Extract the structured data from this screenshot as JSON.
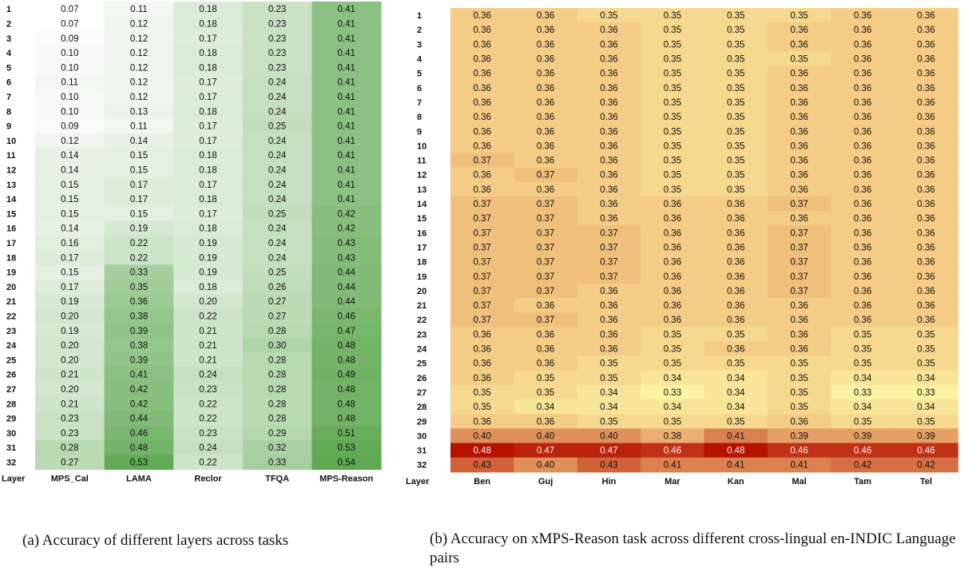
{
  "captions": {
    "a": "(a) Accuracy of different layers across tasks",
    "b": "(b) Accuracy on xMPS-Reason task across different cross-lingual en-INDIC Language pairs"
  },
  "chart_data": [
    {
      "type": "heatmap",
      "row_header": "Layer",
      "rows": [
        "1",
        "2",
        "3",
        "4",
        "5",
        "6",
        "7",
        "8",
        "9",
        "10",
        "11",
        "12",
        "13",
        "14",
        "15",
        "16",
        "17",
        "18",
        "19",
        "20",
        "21",
        "22",
        "23",
        "24",
        "25",
        "26",
        "27",
        "28",
        "29",
        "30",
        "31",
        "32"
      ],
      "columns": [
        "MPS_Cal",
        "LAMA",
        "Reclor",
        "TFQA",
        "MPS-Reason"
      ],
      "colormap": [
        "#ffffff",
        "#5fa952"
      ],
      "values": [
        [
          0.07,
          0.11,
          0.18,
          0.23,
          0.41
        ],
        [
          0.07,
          0.12,
          0.18,
          0.23,
          0.41
        ],
        [
          0.09,
          0.12,
          0.17,
          0.23,
          0.41
        ],
        [
          0.1,
          0.12,
          0.18,
          0.23,
          0.41
        ],
        [
          0.1,
          0.12,
          0.18,
          0.23,
          0.41
        ],
        [
          0.11,
          0.12,
          0.17,
          0.24,
          0.41
        ],
        [
          0.1,
          0.12,
          0.17,
          0.24,
          0.41
        ],
        [
          0.1,
          0.13,
          0.18,
          0.24,
          0.41
        ],
        [
          0.09,
          0.11,
          0.17,
          0.25,
          0.41
        ],
        [
          0.12,
          0.14,
          0.17,
          0.24,
          0.41
        ],
        [
          0.14,
          0.15,
          0.18,
          0.24,
          0.41
        ],
        [
          0.14,
          0.15,
          0.18,
          0.24,
          0.41
        ],
        [
          0.15,
          0.17,
          0.17,
          0.24,
          0.41
        ],
        [
          0.15,
          0.17,
          0.18,
          0.24,
          0.41
        ],
        [
          0.15,
          0.15,
          0.17,
          0.25,
          0.42
        ],
        [
          0.14,
          0.19,
          0.18,
          0.24,
          0.42
        ],
        [
          0.16,
          0.22,
          0.19,
          0.24,
          0.43
        ],
        [
          0.17,
          0.22,
          0.19,
          0.24,
          0.43
        ],
        [
          0.15,
          0.33,
          0.19,
          0.25,
          0.44
        ],
        [
          0.17,
          0.35,
          0.18,
          0.26,
          0.44
        ],
        [
          0.19,
          0.36,
          0.2,
          0.27,
          0.44
        ],
        [
          0.2,
          0.38,
          0.22,
          0.27,
          0.46
        ],
        [
          0.19,
          0.39,
          0.21,
          0.28,
          0.47
        ],
        [
          0.2,
          0.38,
          0.21,
          0.3,
          0.48
        ],
        [
          0.2,
          0.39,
          0.21,
          0.28,
          0.48
        ],
        [
          0.21,
          0.41,
          0.24,
          0.28,
          0.49
        ],
        [
          0.2,
          0.42,
          0.23,
          0.28,
          0.48
        ],
        [
          0.21,
          0.42,
          0.22,
          0.28,
          0.48
        ],
        [
          0.23,
          0.44,
          0.22,
          0.28,
          0.48
        ],
        [
          0.23,
          0.46,
          0.23,
          0.29,
          0.51
        ],
        [
          0.28,
          0.48,
          0.24,
          0.32,
          0.53
        ],
        [
          0.27,
          0.53,
          0.22,
          0.33,
          0.54
        ]
      ]
    },
    {
      "type": "heatmap",
      "row_header": "Layer",
      "rows": [
        "1",
        "2",
        "3",
        "4",
        "5",
        "6",
        "7",
        "8",
        "9",
        "10",
        "11",
        "12",
        "13",
        "14",
        "15",
        "16",
        "17",
        "18",
        "19",
        "20",
        "21",
        "22",
        "23",
        "24",
        "25",
        "26",
        "27",
        "28",
        "29",
        "30",
        "31",
        "32"
      ],
      "columns": [
        "Ben",
        "Guj",
        "Hin",
        "Mar",
        "Kan",
        "Mal",
        "Tam",
        "Tel"
      ],
      "colormap": [
        "#fbf2a2",
        "#f2c37f",
        "#b51200"
      ],
      "values": [
        [
          0.36,
          0.36,
          0.35,
          0.35,
          0.35,
          0.35,
          0.36,
          0.36
        ],
        [
          0.36,
          0.36,
          0.36,
          0.35,
          0.35,
          0.36,
          0.36,
          0.36
        ],
        [
          0.36,
          0.36,
          0.36,
          0.35,
          0.35,
          0.36,
          0.36,
          0.36
        ],
        [
          0.36,
          0.36,
          0.36,
          0.35,
          0.35,
          0.35,
          0.36,
          0.36
        ],
        [
          0.36,
          0.36,
          0.36,
          0.35,
          0.35,
          0.36,
          0.36,
          0.36
        ],
        [
          0.36,
          0.36,
          0.36,
          0.35,
          0.35,
          0.36,
          0.36,
          0.36
        ],
        [
          0.36,
          0.36,
          0.36,
          0.35,
          0.35,
          0.36,
          0.36,
          0.36
        ],
        [
          0.36,
          0.36,
          0.36,
          0.35,
          0.35,
          0.36,
          0.36,
          0.36
        ],
        [
          0.36,
          0.36,
          0.36,
          0.35,
          0.35,
          0.36,
          0.36,
          0.36
        ],
        [
          0.36,
          0.36,
          0.36,
          0.35,
          0.35,
          0.36,
          0.36,
          0.36
        ],
        [
          0.37,
          0.36,
          0.36,
          0.35,
          0.35,
          0.36,
          0.36,
          0.36
        ],
        [
          0.36,
          0.37,
          0.36,
          0.35,
          0.35,
          0.36,
          0.36,
          0.36
        ],
        [
          0.36,
          0.36,
          0.36,
          0.35,
          0.35,
          0.36,
          0.36,
          0.36
        ],
        [
          0.37,
          0.37,
          0.36,
          0.36,
          0.36,
          0.37,
          0.36,
          0.36
        ],
        [
          0.37,
          0.37,
          0.36,
          0.36,
          0.36,
          0.36,
          0.36,
          0.36
        ],
        [
          0.37,
          0.37,
          0.37,
          0.36,
          0.36,
          0.37,
          0.36,
          0.36
        ],
        [
          0.37,
          0.37,
          0.37,
          0.36,
          0.36,
          0.37,
          0.36,
          0.36
        ],
        [
          0.37,
          0.37,
          0.37,
          0.36,
          0.36,
          0.37,
          0.36,
          0.36
        ],
        [
          0.37,
          0.37,
          0.37,
          0.36,
          0.36,
          0.37,
          0.36,
          0.36
        ],
        [
          0.37,
          0.37,
          0.36,
          0.36,
          0.36,
          0.37,
          0.36,
          0.36
        ],
        [
          0.37,
          0.36,
          0.36,
          0.36,
          0.36,
          0.36,
          0.36,
          0.36
        ],
        [
          0.37,
          0.37,
          0.36,
          0.36,
          0.36,
          0.36,
          0.36,
          0.36
        ],
        [
          0.36,
          0.36,
          0.36,
          0.35,
          0.35,
          0.36,
          0.35,
          0.35
        ],
        [
          0.36,
          0.36,
          0.36,
          0.35,
          0.36,
          0.36,
          0.35,
          0.35
        ],
        [
          0.36,
          0.36,
          0.35,
          0.35,
          0.35,
          0.35,
          0.35,
          0.35
        ],
        [
          0.36,
          0.35,
          0.35,
          0.34,
          0.34,
          0.35,
          0.34,
          0.34
        ],
        [
          0.35,
          0.35,
          0.34,
          0.33,
          0.34,
          0.35,
          0.33,
          0.33
        ],
        [
          0.35,
          0.34,
          0.34,
          0.34,
          0.34,
          0.35,
          0.34,
          0.34
        ],
        [
          0.36,
          0.36,
          0.35,
          0.35,
          0.35,
          0.36,
          0.35,
          0.35
        ],
        [
          0.4,
          0.4,
          0.4,
          0.38,
          0.41,
          0.39,
          0.39,
          0.39
        ],
        [
          0.48,
          0.47,
          0.47,
          0.46,
          0.48,
          0.46,
          0.46,
          0.46
        ],
        [
          0.43,
          0.4,
          0.43,
          0.41,
          0.41,
          0.41,
          0.42,
          0.42
        ]
      ]
    }
  ]
}
